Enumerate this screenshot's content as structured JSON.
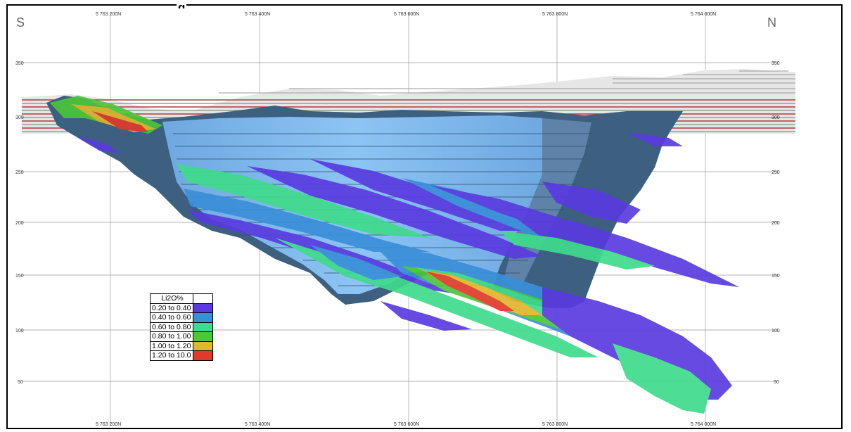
{
  "headline": "g",
  "section": {
    "left_dir": "S",
    "right_dir": "N",
    "northing_ticks": [
      "5 763 200N",
      "5 763 400N",
      "5 763 600N",
      "5 763 800N",
      "5 764 000N"
    ],
    "elevation_ticks": [
      "350",
      "300",
      "250",
      "200",
      "150",
      "100",
      "50"
    ]
  },
  "legend": {
    "title": "Li2O%",
    "entries": [
      {
        "label": "0.20 to 0.40",
        "color": "#5a3be0"
      },
      {
        "label": "0.40 to 0.60",
        "color": "#3a8fd8"
      },
      {
        "label": "0.60 to 0.80",
        "color": "#3fdb8c"
      },
      {
        "label": "0.80 to 1.00",
        "color": "#4cc63a"
      },
      {
        "label": "1.00 to 1.20",
        "color": "#e0b62a"
      },
      {
        "label": "1.20 to 10.0",
        "color": "#e03a2a"
      }
    ]
  },
  "colors": {
    "pit": "#7fb8ee",
    "pit_wall": "#3a5a78",
    "topography_band_red": "#b03a3a",
    "topography_band_grey": "#9a9a9a"
  }
}
